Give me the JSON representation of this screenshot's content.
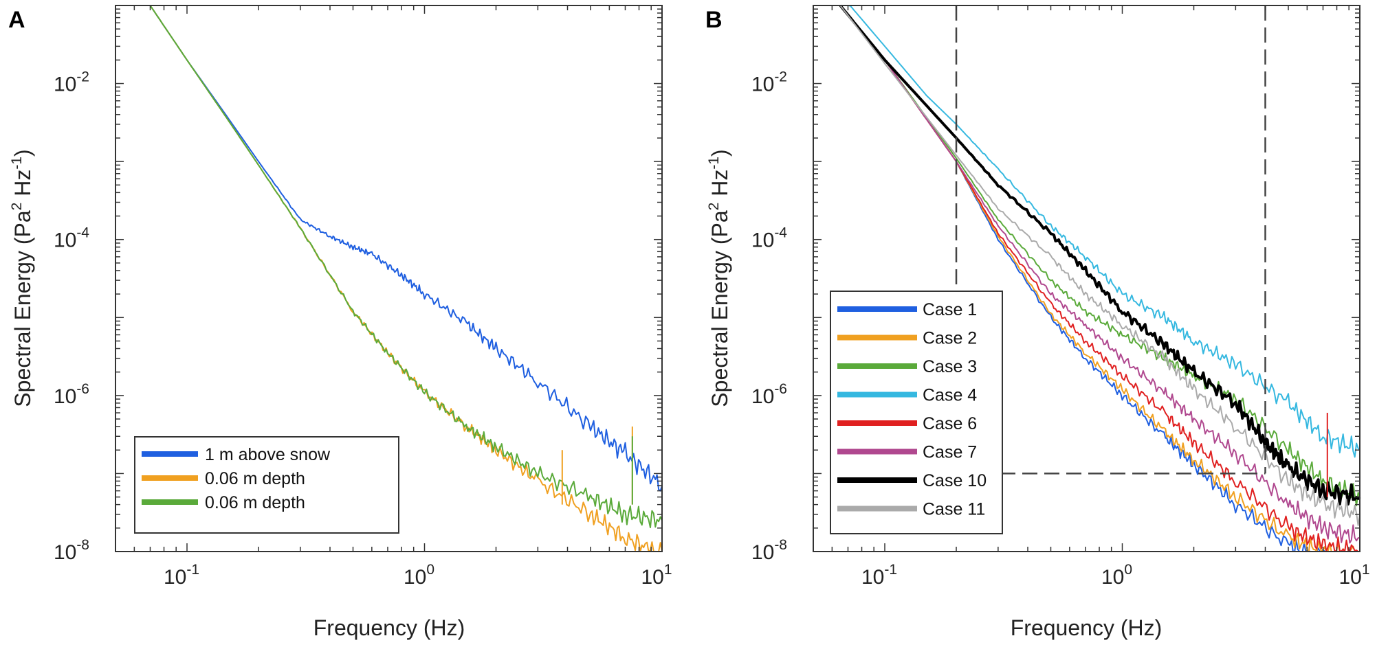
{
  "chart_data": [
    {
      "type": "line",
      "panel_label": "A",
      "xscale": "log",
      "yscale": "log",
      "xlim": [
        0.05,
        10
      ],
      "ylim": [
        1e-08,
        0.1
      ],
      "xticks": [
        {
          "value": 0.1,
          "base": "10",
          "exp": "-1"
        },
        {
          "value": 1,
          "base": "10",
          "exp": "0"
        },
        {
          "value": 10,
          "base": "10",
          "exp": "1"
        }
      ],
      "yticks": [
        {
          "value": 1e-08,
          "base": "10",
          "exp": "-8"
        },
        {
          "value": 1e-06,
          "base": "10",
          "exp": "-6"
        },
        {
          "value": 0.0001,
          "base": "10",
          "exp": "-4"
        },
        {
          "value": 0.01,
          "base": "10",
          "exp": "-2"
        }
      ],
      "xlabel": "Frequency (Hz)",
      "ylabel": "Spectral Energy (Pa",
      "ylabel_sup1": "2",
      "ylabel_mid": " Hz",
      "ylabel_sup2": "-1",
      "ylabel_end": ")",
      "legend_position": "bottom-left",
      "series": [
        {
          "name": "1 m above snow",
          "color": "#1f5fe0",
          "x": [
            0.07,
            0.1,
            0.15,
            0.2,
            0.3,
            0.4,
            0.5,
            0.6,
            0.8,
            1.0,
            1.5,
            2.0,
            3.0,
            5.0,
            7.0,
            10.0
          ],
          "y": [
            0.1,
            0.02,
            0.0035,
            0.001,
            0.00018,
            0.00011,
            8e-05,
            6.5e-05,
            3.5e-05,
            2e-05,
            8.5e-06,
            4e-06,
            1.5e-06,
            4e-07,
            1.8e-07,
            7e-08
          ]
        },
        {
          "name": "0.06 m depth",
          "color": "#f0a020",
          "x": [
            0.07,
            0.1,
            0.15,
            0.2,
            0.3,
            0.5,
            0.7,
            1.0,
            1.5,
            2.0,
            3.0,
            5.0,
            7.0,
            10.0
          ],
          "y": [
            0.1,
            0.02,
            0.0033,
            0.0009,
            0.00014,
            1.2e-05,
            3.5e-06,
            1.1e-06,
            4e-07,
            2e-07,
            8e-08,
            3e-08,
            1.5e-08,
            9e-09
          ]
        },
        {
          "name": "0.06 m depth",
          "color": "#5aaa3a",
          "x": [
            0.07,
            0.1,
            0.15,
            0.2,
            0.3,
            0.5,
            0.7,
            1.0,
            1.5,
            2.0,
            3.0,
            5.0,
            7.0,
            10.0
          ],
          "y": [
            0.1,
            0.02,
            0.0033,
            0.0009,
            0.00014,
            1.2e-05,
            3.5e-06,
            1.1e-06,
            4e-07,
            2.2e-07,
            1e-07,
            5e-08,
            3e-08,
            2.5e-08
          ]
        }
      ],
      "spikes": [
        {
          "x": 3.8,
          "y_from": 4e-08,
          "y_to": 2e-07,
          "color": "#f0a020"
        },
        {
          "x": 7.5,
          "y_from": 4e-08,
          "y_to": 4e-07,
          "color": "#f0a020"
        },
        {
          "x": 7.5,
          "y_from": 4e-08,
          "y_to": 3e-07,
          "color": "#5aaa3a"
        }
      ]
    },
    {
      "type": "line",
      "panel_label": "B",
      "xscale": "log",
      "yscale": "log",
      "xlim": [
        0.05,
        10
      ],
      "ylim": [
        1e-08,
        0.1
      ],
      "xticks": [
        {
          "value": 0.1,
          "base": "10",
          "exp": "-1"
        },
        {
          "value": 1,
          "base": "10",
          "exp": "0"
        },
        {
          "value": 10,
          "base": "10",
          "exp": "1"
        }
      ],
      "yticks": [
        {
          "value": 1e-08,
          "base": "10",
          "exp": "-8"
        },
        {
          "value": 1e-06,
          "base": "10",
          "exp": "-6"
        },
        {
          "value": 0.0001,
          "base": "10",
          "exp": "-4"
        },
        {
          "value": 0.01,
          "base": "10",
          "exp": "-2"
        }
      ],
      "xlabel": "Frequency (Hz)",
      "ylabel": "Spectral Energy (Pa",
      "ylabel_sup1": "2",
      "ylabel_mid": " Hz",
      "ylabel_sup2": "-1",
      "ylabel_end": ")",
      "legend_position": "bottom-left",
      "guides": {
        "x_low": 0.2,
        "x_high": 4.0,
        "y_level": 1e-07,
        "color": "#444444"
      },
      "series": [
        {
          "name": "Case 1",
          "color": "#1f5fe0",
          "x": [
            0.065,
            0.1,
            0.2,
            0.3,
            0.5,
            0.7,
            1.0,
            1.5,
            2.0,
            3.0,
            5.0,
            7.0,
            10.0
          ],
          "y": [
            0.1,
            0.02,
            0.001,
            0.0001,
            1e-05,
            3e-06,
            1e-06,
            3e-07,
            1.3e-07,
            4e-08,
            1.2e-08,
            8e-09,
            7e-09
          ]
        },
        {
          "name": "Case 2",
          "color": "#f0a020",
          "x": [
            0.065,
            0.1,
            0.2,
            0.3,
            0.5,
            0.7,
            1.0,
            1.5,
            2.0,
            3.0,
            5.0,
            7.0,
            10.0
          ],
          "y": [
            0.1,
            0.02,
            0.001,
            0.00011,
            1.1e-05,
            3.5e-06,
            1.2e-06,
            3.5e-07,
            1.5e-07,
            5e-08,
            1.5e-08,
            1e-08,
            9e-09
          ]
        },
        {
          "name": "Case 3",
          "color": "#5aaa3a",
          "x": [
            0.065,
            0.1,
            0.2,
            0.3,
            0.5,
            0.7,
            1.0,
            1.5,
            2.0,
            3.0,
            5.0,
            7.0,
            10.0
          ],
          "y": [
            0.1,
            0.02,
            0.0011,
            0.00018,
            3e-05,
            1.2e-05,
            6e-06,
            3e-06,
            1.8e-06,
            9e-07,
            2e-07,
            8e-08,
            5e-08
          ]
        },
        {
          "name": "Case 4",
          "color": "#35b8e0",
          "x": [
            0.065,
            0.1,
            0.15,
            0.2,
            0.3,
            0.5,
            0.7,
            1.0,
            1.5,
            2.0,
            3.0,
            5.0,
            7.0,
            10.0
          ],
          "y": [
            0.14,
            0.03,
            0.007,
            0.003,
            0.0008,
            0.00015,
            6e-05,
            2e-05,
            1e-05,
            5e-06,
            2.5e-06,
            8e-07,
            3e-07,
            2e-07
          ]
        },
        {
          "name": "Case 6",
          "color": "#e02020",
          "x": [
            0.065,
            0.1,
            0.2,
            0.3,
            0.5,
            0.7,
            1.0,
            1.5,
            2.0,
            3.0,
            5.0,
            7.0,
            10.0
          ],
          "y": [
            0.1,
            0.02,
            0.001,
            0.00012,
            1.5e-05,
            5e-06,
            1.8e-06,
            6e-07,
            2.5e-07,
            8e-08,
            2e-08,
            1.2e-08,
            1e-08
          ]
        },
        {
          "name": "Case 7",
          "color": "#b0488f",
          "x": [
            0.065,
            0.1,
            0.2,
            0.3,
            0.5,
            0.7,
            1.0,
            1.5,
            2.0,
            3.0,
            5.0,
            7.0,
            10.0
          ],
          "y": [
            0.1,
            0.02,
            0.001,
            0.00015,
            2e-05,
            8e-06,
            3e-06,
            1.1e-06,
            5e-07,
            1.8e-07,
            4e-08,
            2e-08,
            1.5e-08
          ]
        },
        {
          "name": "Case 10",
          "color": "#000000",
          "width": 4,
          "x": [
            0.065,
            0.1,
            0.2,
            0.3,
            0.5,
            0.7,
            1.0,
            1.5,
            2.0,
            3.0,
            4.0,
            5.0,
            7.0,
            10.0
          ],
          "y": [
            0.1,
            0.02,
            0.002,
            0.0005,
            0.00012,
            4e-05,
            1.2e-05,
            4.5e-06,
            2e-06,
            8e-07,
            2.5e-07,
            1.2e-07,
            6e-08,
            5e-08
          ]
        },
        {
          "name": "Case 11",
          "color": "#aaaaaa",
          "x": [
            0.065,
            0.1,
            0.2,
            0.3,
            0.5,
            0.7,
            1.0,
            1.5,
            2.0,
            3.0,
            5.0,
            7.0,
            10.0
          ],
          "y": [
            0.1,
            0.018,
            0.0012,
            0.00025,
            6e-05,
            2e-05,
            8e-06,
            3e-06,
            1.2e-06,
            4e-07,
            8e-08,
            4e-08,
            3e-08
          ]
        }
      ],
      "spikes": [
        {
          "x": 7.3,
          "y_from": 5e-08,
          "y_to": 6e-07,
          "color": "#e02020"
        }
      ]
    }
  ]
}
